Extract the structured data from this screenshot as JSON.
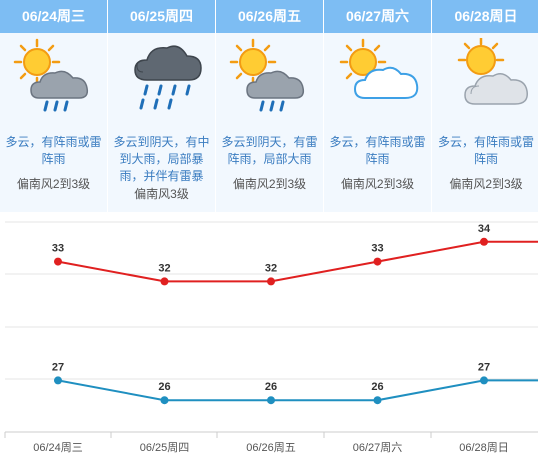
{
  "days": [
    {
      "header": "06/24周三",
      "icon": "thunder-shower-icon",
      "desc": "多云，有阵雨或雷阵雨",
      "wind": "偏南风2到3级"
    },
    {
      "header": "06/25周四",
      "icon": "heavy-rain-icon",
      "desc": "多云到阴天，有中到大雨，局部暴雨，并伴有雷暴",
      "wind": "偏南风3级"
    },
    {
      "header": "06/26周五",
      "icon": "thunder-shower-icon",
      "desc": "多云到阴天，有雷阵雨，局部大雨",
      "wind": "偏南风2到3级"
    },
    {
      "header": "06/27周六",
      "icon": "partly-cloudy-icon",
      "desc": "多云，有阵雨或雷阵雨",
      "wind": "偏南风2到3级"
    },
    {
      "header": "06/28周日",
      "icon": "cloudy-icon",
      "desc": "多云，有阵雨或雷阵雨",
      "wind": "偏南风2到3级"
    }
  ],
  "chart_data": {
    "type": "line",
    "categories": [
      "06/24周三",
      "06/25周四",
      "06/26周五",
      "06/27周六",
      "06/28周日"
    ],
    "series": [
      {
        "values": [
          33,
          32,
          32,
          33,
          34
        ],
        "color": "#e02020"
      },
      {
        "values": [
          27,
          26,
          26,
          26,
          27
        ],
        "color": "#1f8fc0"
      }
    ],
    "ylim": [
      25,
      35
    ],
    "grid": true
  }
}
